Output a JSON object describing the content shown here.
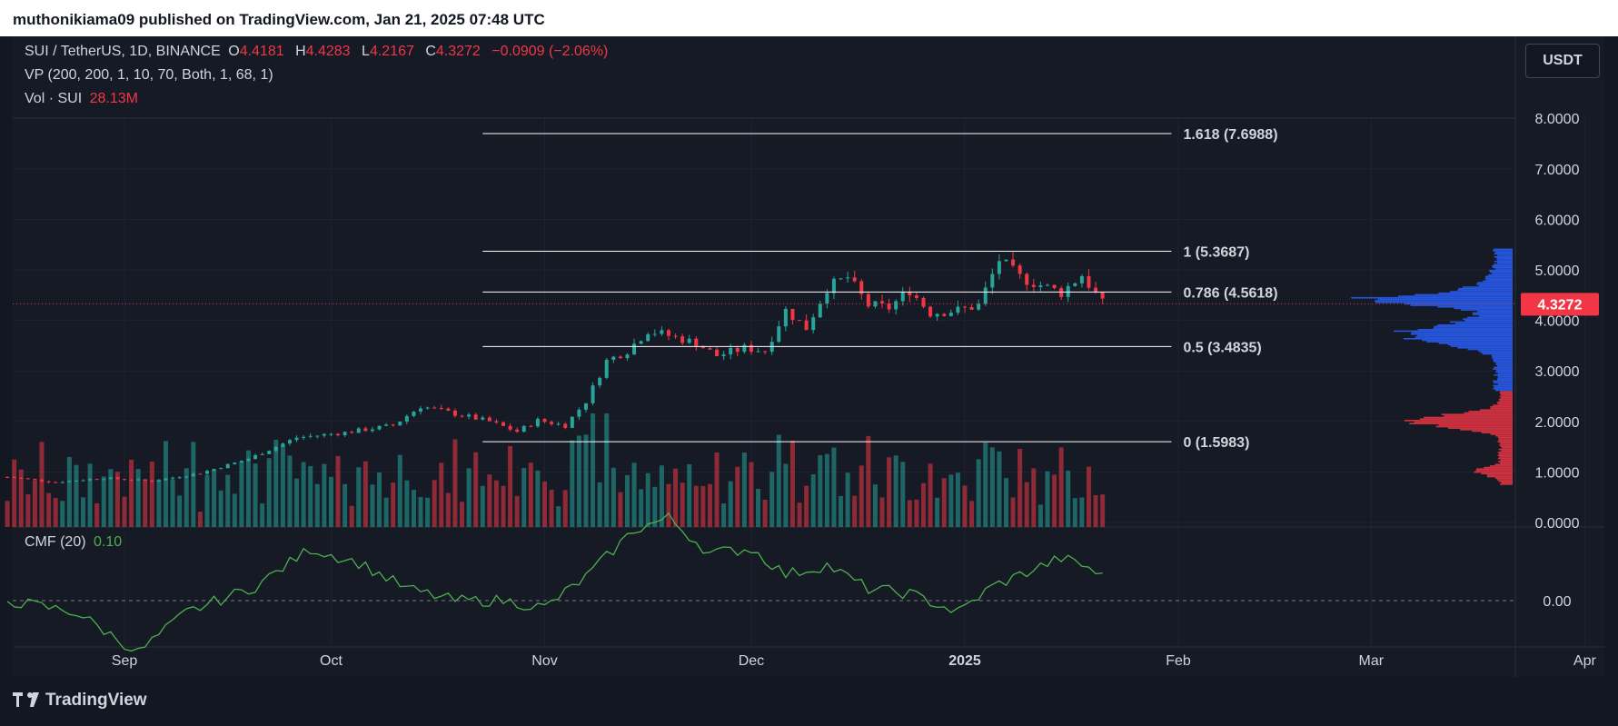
{
  "header": {
    "published": "muthonikiama09 published on TradingView.com, Jan 21, 2025 07:48 UTC"
  },
  "legend": {
    "symbol": "SUI / TetherUS, 1D, BINANCE",
    "open_label": "O",
    "open": "4.4181",
    "high_label": "H",
    "high": "4.4283",
    "low_label": "L",
    "low": "4.2167",
    "close_label": "C",
    "close": "4.3272",
    "change": "−0.0909 (−2.06%)",
    "vp": "VP (200, 200, 1, 10, 70, Both, 1, 68, 1)",
    "vol_label": "Vol · SUI",
    "vol_value": "28.13M",
    "cmf_label": "CMF (20)",
    "cmf_value": "0.10"
  },
  "currency_button": "USDT",
  "footer": {
    "brand": "TradingView"
  },
  "colors": {
    "up": "#26a69a",
    "down": "#f23645",
    "vp_up": "#2962ff",
    "vp_down": "#f23645",
    "cmf": "#4caf50",
    "fib": "#ffffff",
    "bg": "#161a25"
  },
  "chart_data": {
    "type": "candlestick",
    "symbol": "SUI/USDT",
    "y_axis": {
      "ticks": [
        "8.0000",
        "7.0000",
        "6.0000",
        "5.0000",
        "4.0000",
        "3.0000",
        "2.0000",
        "1.0000",
        "0.0000"
      ],
      "tick_values": [
        8,
        7,
        6,
        5,
        4,
        3,
        2,
        1,
        0
      ],
      "ylim": [
        0,
        8.6
      ]
    },
    "x_axis": {
      "ticks": [
        "Sep",
        "Oct",
        "Nov",
        "Dec",
        "2025",
        "Feb",
        "Mar",
        "Apr"
      ],
      "tick_dates": [
        "2024-09-01",
        "2024-10-01",
        "2024-11-01",
        "2024-12-01",
        "2025-01-01",
        "2025-02-01",
        "2025-03-01",
        "2025-04-01"
      ]
    },
    "last_price": {
      "label": "4.3272",
      "value": 4.3272
    },
    "fib_levels": [
      {
        "label": "1.618 (7.6988)",
        "value": 7.6988
      },
      {
        "label": "1 (5.3687)",
        "value": 5.3687
      },
      {
        "label": "0.786 (4.5618)",
        "value": 4.5618
      },
      {
        "label": "0.5 (3.4835)",
        "value": 3.4835
      },
      {
        "label": "0 (1.5983)",
        "value": 1.5983
      }
    ],
    "fib_range": {
      "start_date": "2024-10-23",
      "end_date": "2025-01-31"
    },
    "price_anchors": [
      [
        "2024-08-15",
        0.9
      ],
      [
        "2024-08-22",
        0.8
      ],
      [
        "2024-08-29",
        0.88
      ],
      [
        "2024-09-05",
        0.82
      ],
      [
        "2024-09-12",
        0.98
      ],
      [
        "2024-09-19",
        1.26
      ],
      [
        "2024-09-26",
        1.68
      ],
      [
        "2024-10-03",
        1.78
      ],
      [
        "2024-10-10",
        1.92
      ],
      [
        "2024-10-14",
        2.3
      ],
      [
        "2024-10-20",
        2.12
      ],
      [
        "2024-10-24",
        2.0
      ],
      [
        "2024-10-28",
        1.8
      ],
      [
        "2024-10-31",
        2.02
      ],
      [
        "2024-11-04",
        1.92
      ],
      [
        "2024-11-07",
        2.4
      ],
      [
        "2024-11-10",
        3.2
      ],
      [
        "2024-11-13",
        3.4
      ],
      [
        "2024-11-16",
        3.8
      ],
      [
        "2024-11-19",
        3.7
      ],
      [
        "2024-11-23",
        3.55
      ],
      [
        "2024-11-26",
        3.3
      ],
      [
        "2024-11-30",
        3.45
      ],
      [
        "2024-12-03",
        3.4
      ],
      [
        "2024-12-06",
        4.2
      ],
      [
        "2024-12-09",
        3.85
      ],
      [
        "2024-12-12",
        4.65
      ],
      [
        "2024-12-15",
        4.85
      ],
      [
        "2024-12-18",
        4.3
      ],
      [
        "2024-12-21",
        4.25
      ],
      [
        "2024-12-24",
        4.6
      ],
      [
        "2024-12-27",
        4.15
      ],
      [
        "2024-12-31",
        4.2
      ],
      [
        "2025-01-03",
        4.3
      ],
      [
        "2025-01-06",
        5.2
      ],
      [
        "2025-01-09",
        4.85
      ],
      [
        "2025-01-12",
        4.7
      ],
      [
        "2025-01-15",
        4.55
      ],
      [
        "2025-01-18",
        4.9
      ],
      [
        "2025-01-21",
        4.33
      ]
    ],
    "volume_pane": {
      "units": "SUI"
    },
    "cmf": {
      "value_label": "0.10",
      "zero_label": "0.00",
      "anchors": [
        [
          "2024-08-15",
          0.0
        ],
        [
          "2024-08-25",
          -0.05
        ],
        [
          "2024-09-03",
          -0.22
        ],
        [
          "2024-09-10",
          -0.05
        ],
        [
          "2024-09-20",
          0.06
        ],
        [
          "2024-09-28",
          0.22
        ],
        [
          "2024-10-05",
          0.16
        ],
        [
          "2024-10-12",
          0.05
        ],
        [
          "2024-10-19",
          0.0
        ],
        [
          "2024-10-26",
          0.0
        ],
        [
          "2024-11-01",
          -0.03
        ],
        [
          "2024-11-07",
          0.1
        ],
        [
          "2024-11-14",
          0.3
        ],
        [
          "2024-11-19",
          0.35
        ],
        [
          "2024-11-25",
          0.2
        ],
        [
          "2024-12-01",
          0.22
        ],
        [
          "2024-12-06",
          0.11
        ],
        [
          "2024-12-12",
          0.15
        ],
        [
          "2024-12-18",
          0.05
        ],
        [
          "2024-12-24",
          0.03
        ],
        [
          "2024-12-31",
          -0.05
        ],
        [
          "2025-01-05",
          0.06
        ],
        [
          "2025-01-10",
          0.12
        ],
        [
          "2025-01-15",
          0.18
        ],
        [
          "2025-01-19",
          0.14
        ],
        [
          "2025-01-21",
          0.1
        ]
      ]
    },
    "volume_profile": {
      "up_color": "#2962ff",
      "down_color": "#f23645",
      "price_range": [
        0.75,
        5.4
      ]
    }
  }
}
